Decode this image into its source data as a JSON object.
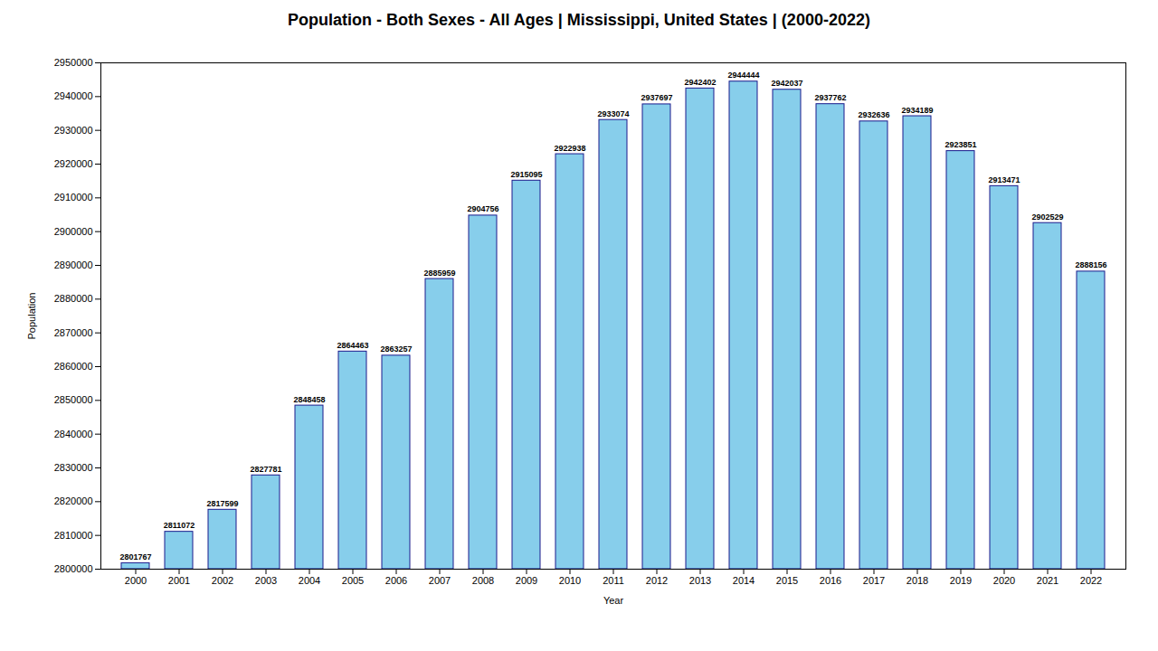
{
  "chart_data": {
    "type": "bar",
    "title": "Population - Both Sexes - All Ages | Mississippi, United States |  (2000-2022)",
    "xlabel": "Year",
    "ylabel": "Population",
    "categories": [
      "2000",
      "2001",
      "2002",
      "2003",
      "2004",
      "2005",
      "2006",
      "2007",
      "2008",
      "2009",
      "2010",
      "2011",
      "2012",
      "2013",
      "2014",
      "2015",
      "2016",
      "2017",
      "2018",
      "2019",
      "2020",
      "2021",
      "2022"
    ],
    "values": [
      2801767,
      2811072,
      2817599,
      2827781,
      2848458,
      2864463,
      2863257,
      2885959,
      2904756,
      2915095,
      2922938,
      2933074,
      2937697,
      2942402,
      2944444,
      2942037,
      2937762,
      2932636,
      2934189,
      2923851,
      2913471,
      2902529,
      2888156
    ],
    "color": "#87ceeb",
    "ylim": [
      2800000,
      2950000
    ],
    "yticks": [
      2800000,
      2810000,
      2820000,
      2830000,
      2840000,
      2850000,
      2860000,
      2870000,
      2880000,
      2890000,
      2900000,
      2910000,
      2920000,
      2930000,
      2940000,
      2950000
    ],
    "grid": false,
    "data_labels": true
  }
}
